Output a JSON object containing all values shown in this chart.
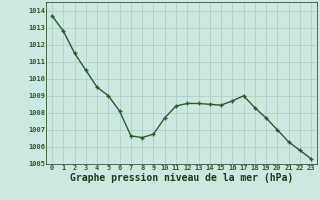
{
  "x": [
    0,
    1,
    2,
    3,
    4,
    5,
    6,
    7,
    8,
    9,
    10,
    11,
    12,
    13,
    14,
    15,
    16,
    17,
    18,
    19,
    20,
    21,
    22,
    23
  ],
  "y": [
    1013.7,
    1012.8,
    1011.5,
    1010.5,
    1009.5,
    1009.0,
    1008.1,
    1006.65,
    1006.55,
    1006.75,
    1007.7,
    1008.4,
    1008.55,
    1008.55,
    1008.5,
    1008.45,
    1008.7,
    1009.0,
    1008.3,
    1007.7,
    1007.0,
    1006.3,
    1005.8,
    1005.3
  ],
  "line_color": "#2d5a2d",
  "marker": "P",
  "marker_size": 2.8,
  "bg_color": "#cce8e0",
  "grid_color": "#aaccc4",
  "axes_color": "#2d5a2d",
  "label_color": "#1a3a1a",
  "xlabel": "Graphe pression niveau de la mer (hPa)",
  "xlabel_fontsize": 7,
  "ylim": [
    1005.0,
    1014.5
  ],
  "yticks": [
    1005,
    1006,
    1007,
    1008,
    1009,
    1010,
    1011,
    1012,
    1013,
    1014
  ],
  "xticks": [
    0,
    1,
    2,
    3,
    4,
    5,
    6,
    7,
    8,
    9,
    10,
    11,
    12,
    13,
    14,
    15,
    16,
    17,
    18,
    19,
    20,
    21,
    22,
    23
  ],
  "tick_fontsize": 5.0,
  "line_width": 1.0
}
